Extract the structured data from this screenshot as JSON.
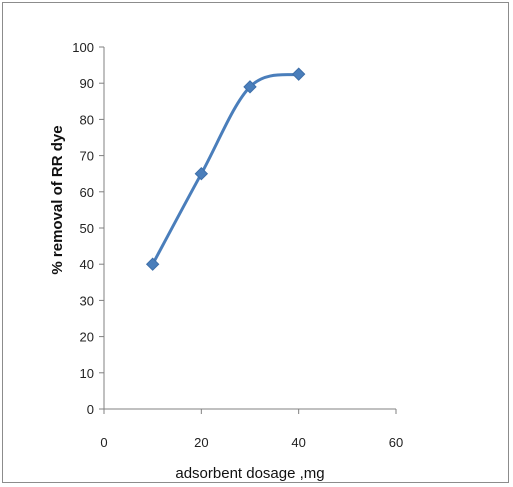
{
  "chart_data": {
    "type": "line",
    "title": "",
    "xlabel": "adsorbent dosage ,mg",
    "ylabel": "% removal of RR dye",
    "xlim": [
      0,
      60
    ],
    "ylim": [
      0,
      100
    ],
    "x_ticks": [
      0,
      20,
      40,
      60
    ],
    "y_ticks": [
      0,
      10,
      20,
      30,
      40,
      50,
      60,
      70,
      80,
      90,
      100
    ],
    "grid": false,
    "legend": "none",
    "marker": "diamond",
    "line_style": "smoothed",
    "series": [
      {
        "x": [
          10,
          20,
          30,
          40
        ],
        "y": [
          40,
          65,
          89,
          92.5
        ]
      }
    ],
    "colors": {
      "series": "#4a7ebb",
      "axis": "#808080"
    }
  }
}
